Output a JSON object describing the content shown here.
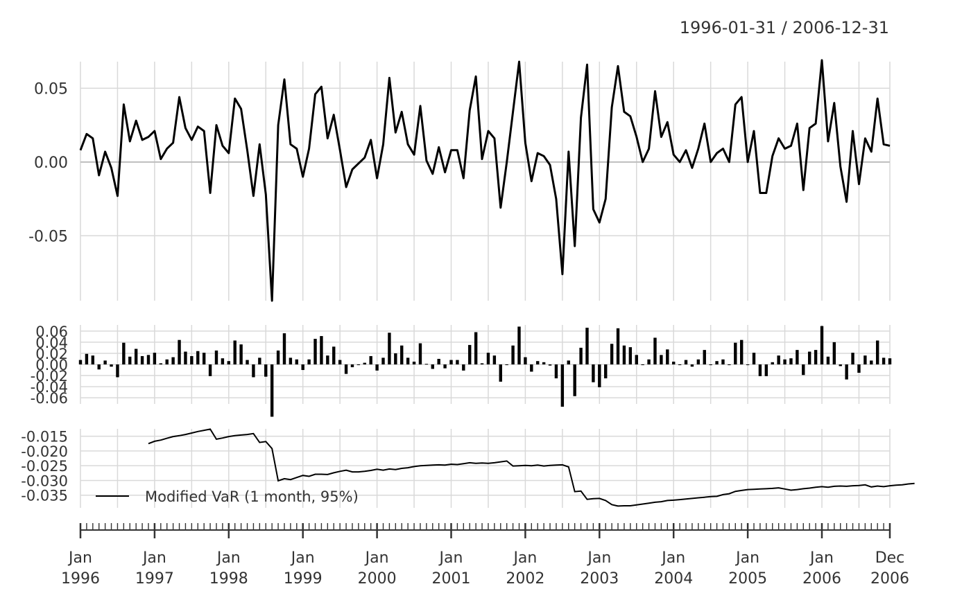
{
  "chart_data": {
    "type": "line",
    "date_range": "1996-01-31 / 2006-12-31",
    "x_start": "1996-01-31",
    "x_end": "2006-12-31",
    "n_months": 132,
    "colors": {
      "grid": "#d9d9d9",
      "zero_line": "#bdbdbd",
      "series": "#000000",
      "text": "#333333"
    },
    "x_axis": {
      "ticks": [
        {
          "month_index": 0,
          "line1": "Jan",
          "line2": "1996"
        },
        {
          "month_index": 12,
          "line1": "Jan",
          "line2": "1997"
        },
        {
          "month_index": 24,
          "line1": "Jan",
          "line2": "1998"
        },
        {
          "month_index": 36,
          "line1": "Jan",
          "line2": "1999"
        },
        {
          "month_index": 48,
          "line1": "Jan",
          "line2": "2000"
        },
        {
          "month_index": 60,
          "line1": "Jan",
          "line2": "2001"
        },
        {
          "month_index": 72,
          "line1": "Jan",
          "line2": "2002"
        },
        {
          "month_index": 84,
          "line1": "Jan",
          "line2": "2003"
        },
        {
          "month_index": 96,
          "line1": "Jan",
          "line2": "2004"
        },
        {
          "month_index": 108,
          "line1": "Jan",
          "line2": "2005"
        },
        {
          "month_index": 120,
          "line1": "Jan",
          "line2": "2006"
        },
        {
          "month_index": 131,
          "line1": "Dec",
          "line2": "2006"
        }
      ],
      "gridlines_at_month_index": [
        0,
        6,
        12,
        18,
        24,
        30,
        36,
        42,
        48,
        54,
        60,
        66,
        72,
        78,
        84,
        90,
        96,
        102,
        108,
        114,
        120,
        126,
        131
      ]
    },
    "panels": [
      {
        "name": "returns-line",
        "type": "line",
        "ylim": [
          -0.094,
          0.068
        ],
        "yticks": [
          {
            "value": 0.05,
            "label": "0.05"
          },
          {
            "value": 0.0,
            "label": "0.00"
          },
          {
            "value": -0.05,
            "label": "-0.05"
          }
        ]
      },
      {
        "name": "returns-bars",
        "type": "bar",
        "ylim": [
          -0.071,
          0.071
        ],
        "yticks": [
          {
            "value": 0.06,
            "label": "0.06"
          },
          {
            "value": 0.04,
            "label": "0.04"
          },
          {
            "value": 0.02,
            "label": "0.02"
          },
          {
            "value": 0.0,
            "label": "0.00"
          },
          {
            "value": -0.02,
            "label": "-0.02"
          },
          {
            "value": -0.04,
            "label": "-0.04"
          },
          {
            "value": -0.06,
            "label": "-0.06"
          }
        ]
      },
      {
        "name": "modified-var",
        "type": "line",
        "ylim": [
          -0.0393,
          -0.0125
        ],
        "yticks": [
          {
            "value": -0.015,
            "label": "-0.015"
          },
          {
            "value": -0.02,
            "label": "-0.020"
          },
          {
            "value": -0.025,
            "label": "-0.025"
          },
          {
            "value": -0.03,
            "label": "-0.030"
          },
          {
            "value": -0.035,
            "label": "-0.035"
          }
        ],
        "legend": {
          "label": "Modified VaR (1 month, 95%)",
          "position": "bottom-left"
        }
      }
    ],
    "returns": [
      0.008,
      0.019,
      0.016,
      -0.009,
      0.007,
      -0.004,
      -0.023,
      0.039,
      0.014,
      0.028,
      0.015,
      0.017,
      0.021,
      0.002,
      0.009,
      0.013,
      0.044,
      0.023,
      0.015,
      0.024,
      0.021,
      -0.021,
      0.025,
      0.011,
      0.006,
      0.043,
      0.036,
      0.008,
      -0.023,
      0.012,
      -0.022,
      -0.094,
      0.025,
      0.056,
      0.012,
      0.009,
      -0.01,
      0.009,
      0.046,
      0.051,
      0.016,
      0.032,
      0.008,
      -0.017,
      -0.005,
      -0.001,
      0.003,
      0.015,
      -0.011,
      0.012,
      0.057,
      0.02,
      0.034,
      0.012,
      0.005,
      0.038,
      0.001,
      -0.008,
      0.01,
      -0.007,
      0.008,
      0.008,
      -0.011,
      0.035,
      0.058,
      0.002,
      0.021,
      0.016,
      -0.031,
      0.0,
      0.034,
      0.068,
      0.013,
      -0.013,
      0.006,
      0.004,
      -0.002,
      -0.025,
      -0.076,
      0.007,
      -0.057,
      0.03,
      0.066,
      -0.032,
      -0.041,
      -0.025,
      0.037,
      0.065,
      0.034,
      0.031,
      0.017,
      0.0,
      0.009,
      0.048,
      0.017,
      0.027,
      0.005,
      0.0,
      0.008,
      -0.004,
      0.009,
      0.026,
      0.0,
      0.006,
      0.009,
      0.0,
      0.039,
      0.044,
      0.0,
      0.021,
      -0.021,
      -0.021,
      0.004,
      0.016,
      0.009,
      0.011,
      0.026,
      -0.019,
      0.023,
      0.026,
      0.069,
      0.014,
      0.04,
      -0.003,
      -0.027,
      0.021,
      -0.015,
      0.016,
      0.007,
      0.043,
      0.012,
      0.011
    ],
    "modified_var": [
      null,
      null,
      null,
      null,
      null,
      null,
      null,
      null,
      null,
      null,
      null,
      -0.0175,
      -0.0167,
      -0.0163,
      -0.0157,
      -0.0151,
      -0.0148,
      -0.0144,
      -0.0139,
      -0.0134,
      -0.013,
      -0.0126,
      -0.016,
      -0.0156,
      -0.0151,
      -0.0148,
      -0.0146,
      -0.0144,
      -0.0141,
      -0.0171,
      -0.0168,
      -0.0192,
      -0.0301,
      -0.0294,
      -0.0297,
      -0.029,
      -0.0283,
      -0.0286,
      -0.0279,
      -0.0279,
      -0.028,
      -0.0274,
      -0.0269,
      -0.0265,
      -0.0271,
      -0.0271,
      -0.0269,
      -0.0266,
      -0.0262,
      -0.0265,
      -0.0261,
      -0.0263,
      -0.0259,
      -0.0257,
      -0.0253,
      -0.025,
      -0.0249,
      -0.0248,
      -0.0247,
      -0.0248,
      -0.0245,
      -0.0246,
      -0.0243,
      -0.024,
      -0.0242,
      -0.0241,
      -0.0242,
      -0.024,
      -0.0237,
      -0.0234,
      -0.0251,
      -0.025,
      -0.0249,
      -0.025,
      -0.0248,
      -0.0251,
      -0.0249,
      -0.0248,
      -0.0247,
      -0.0254,
      -0.0338,
      -0.0336,
      -0.0364,
      -0.0362,
      -0.0361,
      -0.0368,
      -0.0382,
      -0.0387,
      -0.0386,
      -0.0386,
      -0.0383,
      -0.038,
      -0.0377,
      -0.0374,
      -0.0372,
      -0.0368,
      -0.0367,
      -0.0365,
      -0.0363,
      -0.0361,
      -0.0359,
      -0.0357,
      -0.0355,
      -0.0354,
      -0.0348,
      -0.0345,
      -0.0337,
      -0.0334,
      -0.0331,
      -0.033,
      -0.0329,
      -0.0328,
      -0.0327,
      -0.0325,
      -0.0329,
      -0.0333,
      -0.0331,
      -0.0328,
      -0.0326,
      -0.0323,
      -0.0321,
      -0.0323,
      -0.032,
      -0.0319,
      -0.032,
      -0.0318,
      -0.0317,
      -0.0315,
      -0.0322,
      -0.0319,
      -0.0321,
      -0.0318,
      -0.0316,
      -0.0315,
      -0.0312,
      -0.031
    ]
  }
}
